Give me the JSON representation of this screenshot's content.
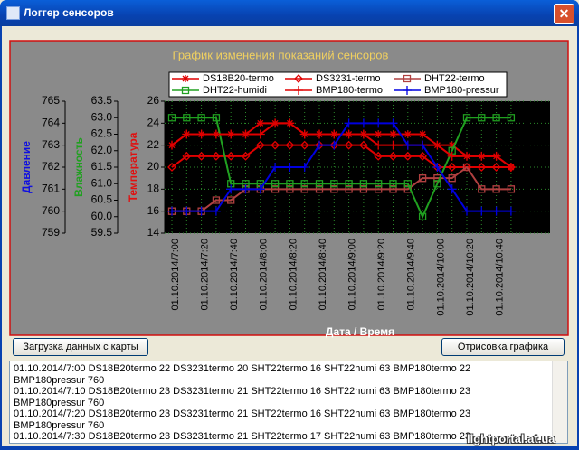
{
  "window": {
    "title": "Логгер сенсоров"
  },
  "chart_data": {
    "type": "line",
    "title": "График изменения показаний сенсоров",
    "xlabel": "Дата / Время",
    "ylabel": "Температура",
    "y2label": "Влажность",
    "y3label": "Давление",
    "categories": [
      "01.10.2014/7:00",
      null,
      "01.10.2014/7:20",
      null,
      "01.10.2014/7:40",
      null,
      "01.10.2014/8:00",
      null,
      "01.10.2014/8:20",
      null,
      "01.10.2014/8:40",
      null,
      "01.10.2014/9:00",
      null,
      "01.10.2014/9:20",
      null,
      "01.10.2014/9:40",
      null,
      "01.10.2014/10:00",
      null,
      "01.10.2014/10:20",
      null,
      "01.10.2014/10:40",
      null
    ],
    "ylim": [
      14,
      26
    ],
    "yticks": [
      14,
      16,
      18,
      20,
      22,
      24,
      26
    ],
    "y2lim": [
      59.5,
      63.5
    ],
    "y2ticks": [
      59.5,
      {
        "value": 60,
        "label": "60.0"
      },
      60.5,
      {
        "value": 61,
        "label": "61.0"
      },
      61.5,
      {
        "value": 62,
        "label": "62.0"
      },
      62.5,
      {
        "value": 63,
        "label": "63.0"
      },
      63.5
    ],
    "y3lim": [
      759,
      765
    ],
    "y3ticks": [
      759,
      760,
      761,
      762,
      763,
      764,
      765
    ],
    "grid": true,
    "series": [
      {
        "name": "DS18B20-termo",
        "color": "#e00000",
        "marker": "star",
        "values": [
          22,
          23,
          23,
          23,
          23,
          23,
          24,
          24,
          24,
          23,
          23,
          23,
          23,
          23,
          23,
          23,
          23,
          23,
          22,
          22,
          21,
          21,
          21,
          20
        ]
      },
      {
        "name": "DS3231-termo",
        "color": "#e00000",
        "marker": "diamond",
        "values": [
          20,
          21,
          21,
          21,
          21,
          21,
          22,
          22,
          22,
          22,
          22,
          22,
          22,
          22,
          21,
          21,
          21,
          21,
          20,
          20,
          20,
          20,
          20,
          20
        ]
      },
      {
        "name": "DHT22-termo",
        "color": "#b04040",
        "marker": "square",
        "values": [
          16,
          16,
          16,
          17,
          17,
          18,
          18,
          18,
          18,
          18,
          18,
          18,
          18,
          18,
          18,
          18,
          18,
          19,
          19,
          19,
          20,
          18,
          18,
          18
        ]
      },
      {
        "name": "DHT22-humidi",
        "color": "#20a020",
        "marker": "square",
        "axis": "y2",
        "values": [
          63,
          63,
          63,
          63,
          61,
          61,
          61,
          61,
          61,
          61,
          61,
          61,
          61,
          61,
          61,
          61,
          61,
          60,
          61,
          62,
          63,
          63,
          63,
          63
        ]
      },
      {
        "name": "BMP180-termo",
        "color": "#e00000",
        "marker": "plus",
        "values": [
          22,
          23,
          23,
          23,
          23,
          23,
          23,
          24,
          24,
          23,
          23,
          23,
          23,
          23,
          22,
          22,
          22,
          22,
          22,
          21,
          21,
          21,
          21,
          20
        ]
      },
      {
        "name": "BMP180-pressur",
        "color": "#0000e0",
        "marker": "plus",
        "axis": "y3",
        "values": [
          760,
          760,
          760,
          760,
          761,
          761,
          761,
          762,
          762,
          762,
          763,
          763,
          764,
          764,
          764,
          764,
          763,
          763,
          762,
          761,
          760,
          760,
          760,
          760
        ]
      }
    ]
  },
  "buttons": [
    "Загрузка данных с карты",
    "Отрисовка графика"
  ],
  "log": {
    "lines": [
      "01.10.2014/7:00 DS18B20termo 22 DS3231termo 20 SHT22termo 16 SHT22humi 63 BMP180termo 22",
      "BMP180pressur 760",
      "01.10.2014/7:10 DS18B20termo 23 DS3231termo 21 SHT22termo 16 SHT22humi 63 BMP180termo 23",
      "BMP180pressur 760",
      "01.10.2014/7:20 DS18B20termo 23 DS3231termo 21 SHT22termo 16 SHT22humi 63 BMP180termo 23",
      "BMP180pressur 760",
      "01.10.2014/7:30 DS18B20termo 23 DS3231termo 21 SHT22termo 17 SHT22humi 63 BMP180termo 23"
    ]
  },
  "watermark": "lightportal.at.ua"
}
